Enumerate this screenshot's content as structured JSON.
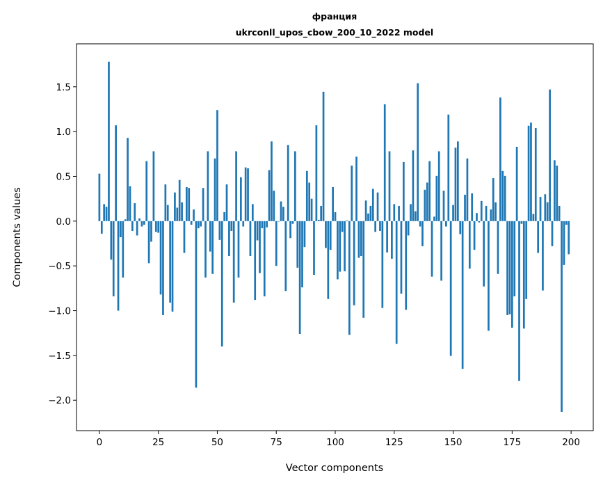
{
  "chart_data": {
    "type": "bar",
    "title": [
      "франция",
      "ukrconll_upos_cbow_200_10_2022 model"
    ],
    "xlabel": "Vector components",
    "ylabel": "Components values",
    "xlim": [
      -9.7,
      209.4
    ],
    "ylim": [
      -2.34,
      1.98
    ],
    "xticks": [
      0,
      25,
      50,
      75,
      100,
      125,
      150,
      175,
      200
    ],
    "xtick_labels": [
      "0",
      "25",
      "50",
      "75",
      "100",
      "125",
      "150",
      "175",
      "200"
    ],
    "yticks": [
      -2.0,
      -1.5,
      -1.0,
      -0.5,
      0.0,
      0.5,
      1.0,
      1.5
    ],
    "ytick_labels": [
      "−2.0",
      "−1.5",
      "−1.0",
      "−0.5",
      "0.0",
      "0.5",
      "1.0",
      "1.5"
    ],
    "grid": false,
    "bar_color": "#1f77b4",
    "values": [
      0.53,
      -0.14,
      0.19,
      0.16,
      1.78,
      -0.43,
      -0.84,
      1.07,
      -1.0,
      -0.18,
      -0.63,
      0.02,
      0.93,
      0.39,
      -0.11,
      0.2,
      -0.16,
      0.03,
      -0.06,
      -0.04,
      0.67,
      -0.47,
      -0.23,
      0.78,
      -0.12,
      -0.13,
      -0.82,
      -1.05,
      0.41,
      0.18,
      -0.91,
      -1.01,
      0.32,
      0.15,
      0.46,
      0.21,
      -0.355,
      0.38,
      0.37,
      -0.04,
      0.13,
      -1.86,
      -0.08,
      -0.06,
      0.37,
      -0.63,
      0.78,
      -0.34,
      -0.59,
      0.7,
      1.24,
      -0.21,
      -1.4,
      0.1,
      0.41,
      -0.39,
      -0.11,
      -0.91,
      0.78,
      -0.63,
      0.49,
      -0.06,
      0.6,
      0.59,
      -0.39,
      0.19,
      -0.88,
      -0.215,
      -0.58,
      -0.08,
      -0.84,
      -0.07,
      0.57,
      0.89,
      0.34,
      -0.5,
      -0.005,
      0.22,
      0.16,
      -0.78,
      0.85,
      -0.19,
      -0.03,
      0.78,
      -0.52,
      -1.26,
      -0.74,
      -0.29,
      0.56,
      0.43,
      0.25,
      -0.6,
      1.07,
      0.015,
      0.17,
      1.445,
      -0.3,
      -0.87,
      -0.32,
      0.38,
      0.1,
      -0.65,
      -0.565,
      -0.12,
      -0.56,
      0.008,
      -1.27,
      0.62,
      -0.94,
      0.72,
      -0.41,
      -0.39,
      -1.08,
      0.23,
      0.085,
      0.17,
      0.36,
      -0.12,
      0.32,
      -0.11,
      -0.97,
      1.305,
      -0.35,
      0.78,
      -0.42,
      0.19,
      -1.37,
      0.17,
      -0.81,
      0.66,
      -0.99,
      -0.16,
      0.19,
      0.79,
      0.11,
      1.54,
      -0.06,
      -0.28,
      0.35,
      0.43,
      0.67,
      -0.62,
      0.05,
      0.505,
      0.78,
      -0.665,
      0.34,
      -0.06,
      1.19,
      -1.505,
      0.18,
      0.82,
      0.89,
      -0.145,
      -1.65,
      0.295,
      0.7,
      -0.53,
      0.31,
      -0.32,
      0.09,
      -0.015,
      0.225,
      -0.73,
      0.17,
      -1.225,
      0.13,
      0.48,
      0.21,
      -0.59,
      1.38,
      0.56,
      0.505,
      -1.05,
      -1.04,
      -1.19,
      -0.84,
      0.83,
      -1.785,
      -0.03,
      -1.2,
      -0.87,
      1.065,
      1.1,
      0.08,
      1.04,
      -0.355,
      0.27,
      -0.775,
      0.3,
      0.21,
      1.47,
      -0.28,
      0.68,
      0.62,
      0.17,
      -2.13,
      -0.49,
      -0.04,
      -0.37
    ]
  }
}
